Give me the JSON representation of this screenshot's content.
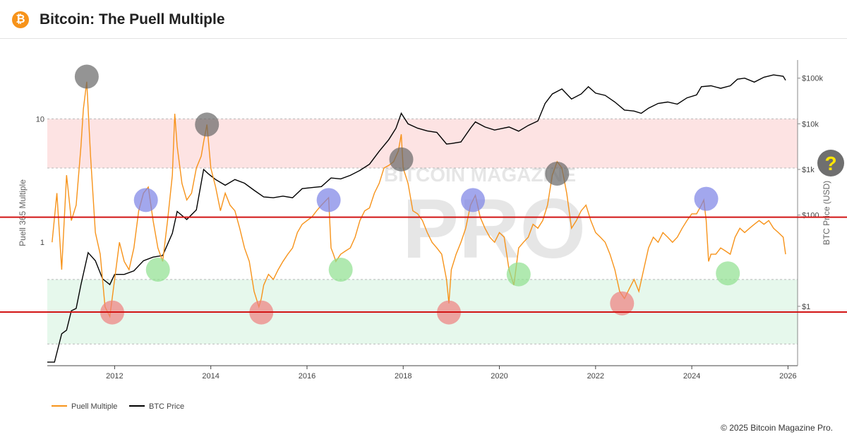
{
  "header": {
    "title": "Bitcoin: The Puell Multiple",
    "logo_glyph": "₿",
    "logo_color": "#f7931a"
  },
  "footer": {
    "copyright": "© 2025 Bitcoin Magazine Pro."
  },
  "watermark": {
    "line1": "BITCOIN MAGAZINE",
    "line2": "PRO"
  },
  "help_button": {
    "label": "?"
  },
  "chart_data": {
    "type": "line",
    "xlabel": "",
    "ylabel_left": "Puell 365 Multiple",
    "ylabel_right": "BTC Price (USD)",
    "x_range": [
      2010.6,
      2026.2
    ],
    "x_ticks": [
      "2012",
      "2014",
      "2016",
      "2018",
      "2020",
      "2022",
      "2024",
      "2026"
    ],
    "y_left_scale": "log",
    "y_left_range": [
      0.1,
      30
    ],
    "y_left_ticks": [
      "1",
      "10"
    ],
    "y_right_scale": "log",
    "y_right_range": [
      0.05,
      250000
    ],
    "y_right_ticks": [
      "$1",
      "$100",
      "$1k",
      "$10k",
      "$100k"
    ],
    "legend": {
      "position": "bottom-left",
      "items": [
        "Puell Multiple",
        "BTC Price"
      ]
    },
    "colors": {
      "puell": "#f7931a",
      "price": "#000000",
      "red_zone": "#fde3e3",
      "green_zone": "#e6f8ec",
      "ref_line": "#d21414"
    },
    "bands": [
      {
        "name": "high zone",
        "from": 1.0,
        "to": 1.0,
        "range": [
          4.0,
          10.0
        ]
      },
      {
        "name": "low zone",
        "range": [
          0.15,
          0.5
        ]
      }
    ],
    "reference_lines_btc_usd": [
      90,
      0.75
    ],
    "series": [
      {
        "name": "Puell Multiple",
        "x": [
          2010.7,
          2010.8,
          2010.9,
          2011.0,
          2011.1,
          2011.2,
          2011.3,
          2011.35,
          2011.42,
          2011.5,
          2011.6,
          2011.7,
          2011.8,
          2011.9,
          2012.0,
          2012.1,
          2012.2,
          2012.3,
          2012.4,
          2012.5,
          2012.6,
          2012.7,
          2012.8,
          2012.9,
          2013.0,
          2013.1,
          2013.2,
          2013.25,
          2013.3,
          2013.4,
          2013.5,
          2013.6,
          2013.7,
          2013.8,
          2013.85,
          2013.92,
          2014.0,
          2014.1,
          2014.2,
          2014.3,
          2014.4,
          2014.5,
          2014.6,
          2014.7,
          2014.8,
          2014.9,
          2015.0,
          2015.05,
          2015.1,
          2015.2,
          2015.3,
          2015.4,
          2015.5,
          2015.6,
          2015.7,
          2015.8,
          2015.9,
          2016.0,
          2016.1,
          2016.2,
          2016.3,
          2016.45,
          2016.5,
          2016.55,
          2016.6,
          2016.7,
          2016.8,
          2016.9,
          2017.0,
          2017.1,
          2017.2,
          2017.3,
          2017.4,
          2017.5,
          2017.6,
          2017.7,
          2017.8,
          2017.9,
          2017.96,
          2018.0,
          2018.1,
          2018.2,
          2018.3,
          2018.4,
          2018.5,
          2018.6,
          2018.7,
          2018.8,
          2018.9,
          2018.95,
          2019.0,
          2019.1,
          2019.2,
          2019.3,
          2019.4,
          2019.5,
          2019.6,
          2019.7,
          2019.8,
          2019.9,
          2020.0,
          2020.1,
          2020.2,
          2020.3,
          2020.4,
          2020.5,
          2020.6,
          2020.7,
          2020.8,
          2020.9,
          2021.0,
          2021.1,
          2021.2,
          2021.3,
          2021.4,
          2021.5,
          2021.6,
          2021.7,
          2021.8,
          2021.9,
          2022.0,
          2022.1,
          2022.2,
          2022.3,
          2022.4,
          2022.5,
          2022.6,
          2022.7,
          2022.8,
          2022.9,
          2023.0,
          2023.1,
          2023.2,
          2023.3,
          2023.4,
          2023.5,
          2023.6,
          2023.7,
          2023.8,
          2023.9,
          2024.0,
          2024.1,
          2024.2,
          2024.25,
          2024.3,
          2024.35,
          2024.4,
          2024.5,
          2024.6,
          2024.7,
          2024.8,
          2024.9,
          2025.0,
          2025.1,
          2025.2,
          2025.3,
          2025.4,
          2025.5,
          2025.6,
          2025.7,
          2025.8,
          2025.9,
          2025.95
        ],
        "y": [
          1.0,
          2.5,
          0.6,
          3.5,
          1.5,
          2.0,
          6.0,
          12.0,
          20.0,
          5.0,
          1.2,
          0.8,
          0.3,
          0.25,
          0.5,
          1.0,
          0.7,
          0.6,
          0.9,
          1.8,
          2.5,
          2.8,
          1.5,
          0.9,
          0.7,
          1.5,
          3.5,
          11.0,
          6.0,
          3.0,
          2.2,
          2.5,
          4.0,
          5.0,
          6.5,
          9.0,
          4.0,
          2.8,
          1.8,
          2.5,
          2.0,
          1.8,
          1.3,
          0.9,
          0.7,
          0.4,
          0.3,
          0.35,
          0.45,
          0.55,
          0.5,
          0.6,
          0.7,
          0.8,
          0.9,
          1.2,
          1.4,
          1.5,
          1.6,
          1.8,
          2.0,
          2.3,
          0.9,
          0.8,
          0.7,
          0.8,
          0.85,
          0.9,
          1.1,
          1.5,
          1.8,
          1.9,
          2.5,
          3.0,
          4.0,
          4.2,
          4.5,
          5.5,
          7.5,
          4.0,
          3.0,
          1.8,
          1.7,
          1.5,
          1.2,
          1.0,
          0.9,
          0.8,
          0.5,
          0.32,
          0.6,
          0.8,
          1.0,
          1.3,
          2.0,
          2.4,
          1.6,
          1.3,
          1.1,
          1.0,
          1.2,
          1.1,
          0.6,
          0.45,
          0.9,
          1.0,
          1.1,
          1.4,
          1.3,
          1.5,
          2.0,
          3.5,
          4.5,
          4.0,
          2.5,
          1.3,
          1.5,
          1.8,
          2.0,
          1.5,
          1.2,
          1.1,
          1.0,
          0.8,
          0.6,
          0.4,
          0.35,
          0.42,
          0.5,
          0.4,
          0.6,
          0.9,
          1.1,
          1.0,
          1.2,
          1.1,
          1.0,
          1.1,
          1.3,
          1.5,
          1.7,
          1.7,
          2.0,
          2.2,
          1.5,
          0.7,
          0.8,
          0.8,
          0.9,
          0.85,
          0.8,
          1.1,
          1.3,
          1.2,
          1.3,
          1.4,
          1.5,
          1.4,
          1.5,
          1.3,
          1.2,
          1.1,
          0.8
        ]
      },
      {
        "name": "BTC Price",
        "x": [
          2010.6,
          2010.75,
          2010.9,
          2011.0,
          2011.1,
          2011.2,
          2011.3,
          2011.45,
          2011.6,
          2011.75,
          2011.9,
          2012.0,
          2012.2,
          2012.4,
          2012.6,
          2012.8,
          2013.0,
          2013.2,
          2013.3,
          2013.5,
          2013.7,
          2013.85,
          2013.95,
          2014.1,
          2014.3,
          2014.5,
          2014.7,
          2014.9,
          2015.1,
          2015.3,
          2015.5,
          2015.7,
          2015.9,
          2016.1,
          2016.3,
          2016.5,
          2016.7,
          2016.9,
          2017.1,
          2017.3,
          2017.5,
          2017.7,
          2017.85,
          2017.96,
          2018.1,
          2018.3,
          2018.5,
          2018.7,
          2018.9,
          2019.0,
          2019.2,
          2019.4,
          2019.5,
          2019.7,
          2019.9,
          2020.2,
          2020.4,
          2020.6,
          2020.8,
          2020.95,
          2021.1,
          2021.3,
          2021.5,
          2021.7,
          2021.85,
          2022.0,
          2022.2,
          2022.4,
          2022.6,
          2022.8,
          2022.95,
          2023.1,
          2023.3,
          2023.5,
          2023.7,
          2023.9,
          2024.1,
          2024.2,
          2024.4,
          2024.6,
          2024.8,
          2024.95,
          2025.1,
          2025.3,
          2025.5,
          2025.7,
          2025.9,
          2025.95
        ],
        "y": [
          0.06,
          0.06,
          0.25,
          0.3,
          0.8,
          0.9,
          3,
          15,
          10,
          4,
          3,
          5,
          5,
          6,
          10,
          12,
          13,
          40,
          120,
          80,
          130,
          1000,
          800,
          600,
          450,
          600,
          500,
          350,
          250,
          240,
          260,
          240,
          380,
          400,
          420,
          650,
          620,
          740,
          950,
          1300,
          2500,
          4500,
          8000,
          17000,
          10000,
          8000,
          7000,
          6500,
          3600,
          3700,
          4000,
          8000,
          11000,
          8500,
          7300,
          8500,
          6900,
          9200,
          11500,
          28000,
          45000,
          58000,
          35000,
          45000,
          65000,
          47000,
          42000,
          30000,
          20000,
          19000,
          17000,
          22000,
          28000,
          30000,
          27000,
          37000,
          43000,
          65000,
          68000,
          60000,
          68000,
          95000,
          100000,
          82000,
          105000,
          118000,
          110000,
          90000
        ]
      }
    ],
    "markers": [
      {
        "kind": "top",
        "x": 2011.42,
        "on": "puell",
        "y": 22,
        "color": "#666666"
      },
      {
        "kind": "top",
        "x": 2013.92,
        "on": "puell",
        "y": 9.0,
        "color": "#666666"
      },
      {
        "kind": "top",
        "x": 2017.96,
        "on": "puell",
        "y": 4.7,
        "color": "#666666"
      },
      {
        "kind": "top",
        "x": 2021.2,
        "on": "puell",
        "y": 3.6,
        "color": "#666666"
      },
      {
        "kind": "high",
        "x": 2012.65,
        "on": "puell",
        "y": 2.2,
        "color": "#7b82e6"
      },
      {
        "kind": "high",
        "x": 2016.45,
        "on": "puell",
        "y": 2.2,
        "color": "#7b82e6"
      },
      {
        "kind": "high",
        "x": 2019.45,
        "on": "puell",
        "y": 2.2,
        "color": "#7b82e6"
      },
      {
        "kind": "high",
        "x": 2024.3,
        "on": "puell",
        "y": 2.25,
        "color": "#7b82e6"
      },
      {
        "kind": "low",
        "x": 2012.9,
        "on": "puell",
        "y": 0.6,
        "color": "#8fe08f"
      },
      {
        "kind": "low",
        "x": 2016.7,
        "on": "puell",
        "y": 0.6,
        "color": "#8fe08f"
      },
      {
        "kind": "low",
        "x": 2020.4,
        "on": "puell",
        "y": 0.55,
        "color": "#8fe08f"
      },
      {
        "kind": "low",
        "x": 2024.75,
        "on": "puell",
        "y": 0.56,
        "color": "#8fe08f"
      },
      {
        "kind": "bottom",
        "x": 2011.95,
        "on": "puell",
        "y": 0.27,
        "color": "#ee7f7f"
      },
      {
        "kind": "bottom",
        "x": 2015.05,
        "on": "puell",
        "y": 0.27,
        "color": "#ee7f7f"
      },
      {
        "kind": "bottom",
        "x": 2018.95,
        "on": "puell",
        "y": 0.27,
        "color": "#ee7f7f"
      },
      {
        "kind": "bottom",
        "x": 2022.55,
        "on": "puell",
        "y": 0.32,
        "color": "#ee7f7f"
      }
    ]
  }
}
